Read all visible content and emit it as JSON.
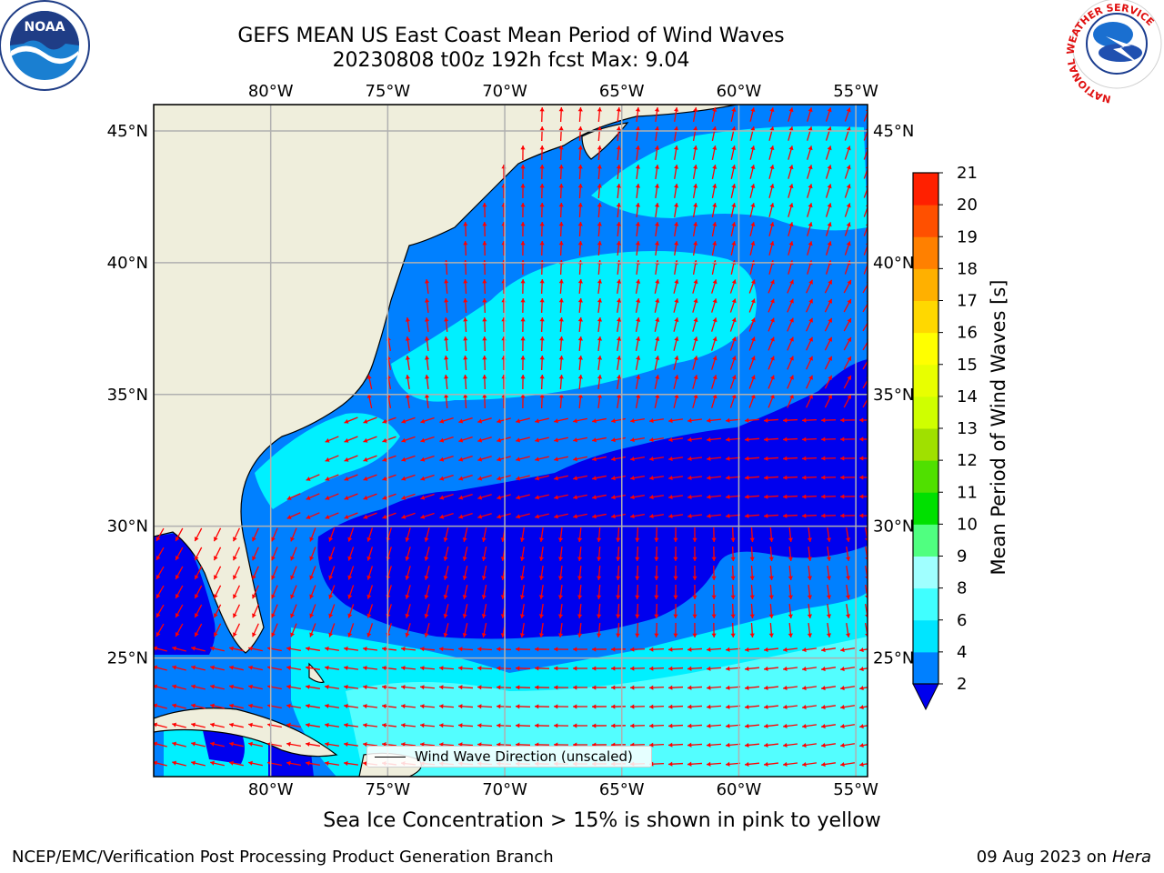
{
  "title": {
    "line1": "GEFS MEAN US East Coast Mean Period of Wind Waves",
    "line2": "20230808 t00z 192h fcst   Max: 9.04"
  },
  "map": {
    "lon_range": [
      -85,
      -54.5
    ],
    "lat_range": [
      20.5,
      46
    ],
    "lon_ticks": [
      {
        "value": -80,
        "label": "80°W"
      },
      {
        "value": -75,
        "label": "75°W"
      },
      {
        "value": -70,
        "label": "70°W"
      },
      {
        "value": -65,
        "label": "65°W"
      },
      {
        "value": -60,
        "label": "60°W"
      },
      {
        "value": -55,
        "label": "55°W"
      }
    ],
    "lat_ticks": [
      {
        "value": 45,
        "label": "45°N"
      },
      {
        "value": 40,
        "label": "40°N"
      },
      {
        "value": 35,
        "label": "35°N"
      },
      {
        "value": 30,
        "label": "30°N"
      },
      {
        "value": 25,
        "label": "25°N"
      }
    ],
    "land_color": "#efeedc",
    "arrow_color": "#ff0000",
    "gridline_color": "#b0b0b0"
  },
  "colorbar": {
    "label": "Mean Period of Wind Waves [s]",
    "ticks": [
      2,
      4,
      6,
      8,
      9,
      10,
      11,
      12,
      13,
      14,
      15,
      16,
      17,
      18,
      19,
      20,
      21
    ],
    "colors": [
      "#0080ff",
      "#00e5ff",
      "#40ffff",
      "#a0ffff",
      "#50ff80",
      "#00e000",
      "#50e000",
      "#a0e000",
      "#cfff00",
      "#e8ff00",
      "#ffff00",
      "#ffd800",
      "#ffb000",
      "#ff8000",
      "#ff5000",
      "#ff2000"
    ],
    "under_color": "#0000ee"
  },
  "legend": {
    "label": "Wind Wave Direction (unscaled)"
  },
  "caption": "Sea Ice Concentration > 15% is shown in pink to yellow",
  "footer": {
    "left": "NCEP/EMC/Verification Post Processing Product Generation Branch",
    "date": "09 Aug 2023 on",
    "host": "Hera"
  },
  "logos": {
    "left": "NOAA",
    "right_text": "NATIONAL WEATHER SERVICE"
  }
}
